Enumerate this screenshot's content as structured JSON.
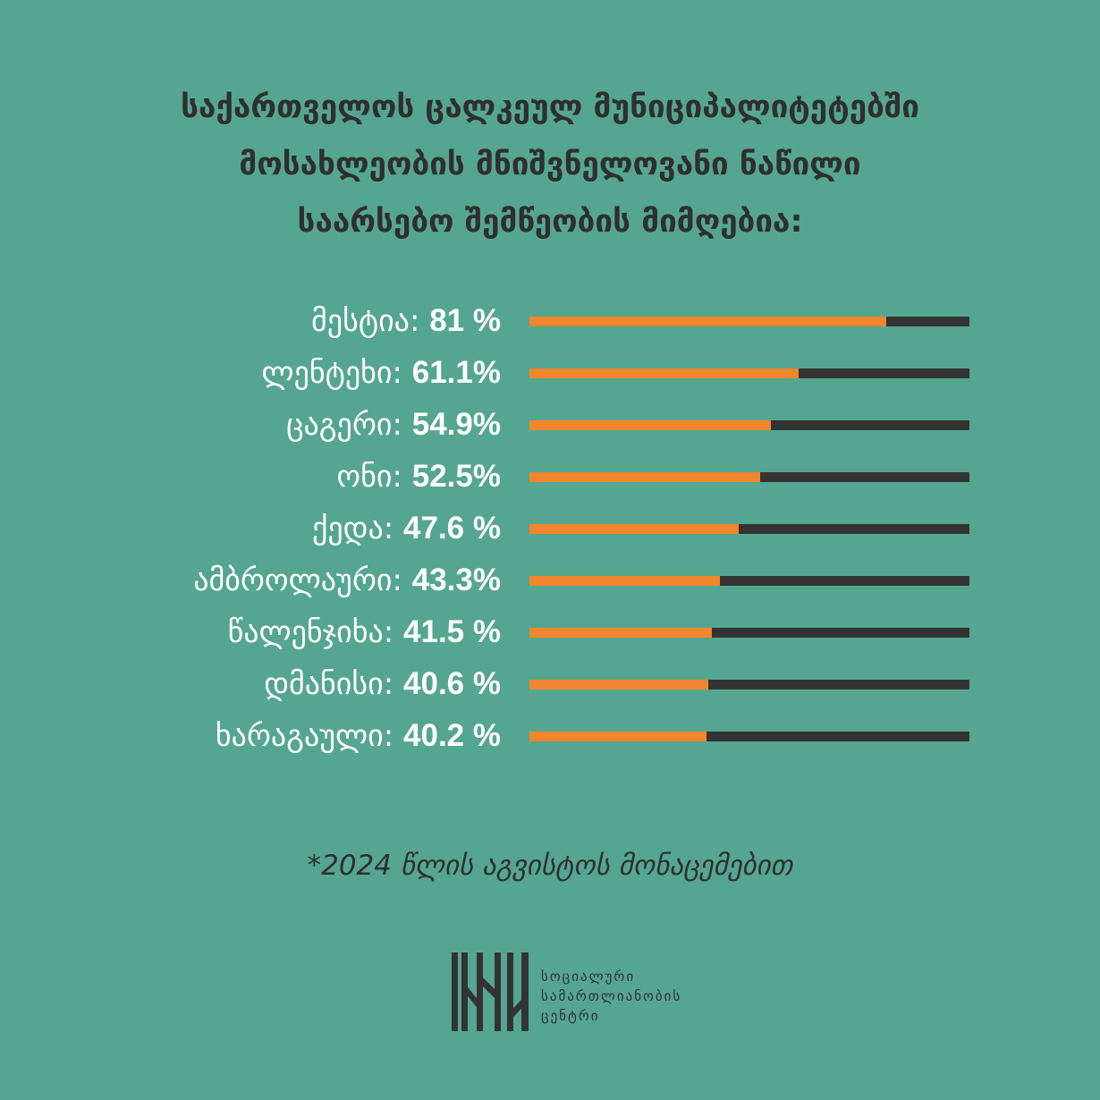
{
  "title_lines": [
    "საქართველოს ცალკეულ მუნიციპალიტეტებში",
    "მოსახლეობის მნიშვნელოვანი ნაწილი",
    "საარსებო შემწეობის მიმღებია:"
  ],
  "footnote": "*2024 წლის აგვისტოს მონაცემებით",
  "logo": {
    "lines": [
      "სოციალური",
      "სამართლიანობის",
      "ცენტრი"
    ]
  },
  "colors": {
    "background": "#55a691",
    "bar_fill": "#f2862e",
    "bar_track": "#333333",
    "label_text": "#ffffff",
    "title_text": "#2f2f2f"
  },
  "chart_data": {
    "type": "bar",
    "orientation": "horizontal",
    "ylim": [
      0,
      100
    ],
    "categories": [
      "მესტია",
      "ლენტეხი",
      "ცაგერი",
      "ონი",
      "ქედა",
      "ამბროლაური",
      "წალენჯიხა",
      "დმანისი",
      "ხარაგაული"
    ],
    "values": [
      81,
      61.1,
      54.9,
      52.5,
      47.6,
      43.3,
      41.5,
      40.6,
      40.2
    ],
    "value_labels": [
      "81 %",
      "61.1%",
      "54.9%",
      "52.5%",
      "47.6 %",
      "43.3%",
      "41.5 %",
      "40.6 %",
      "40.2 %"
    ]
  }
}
